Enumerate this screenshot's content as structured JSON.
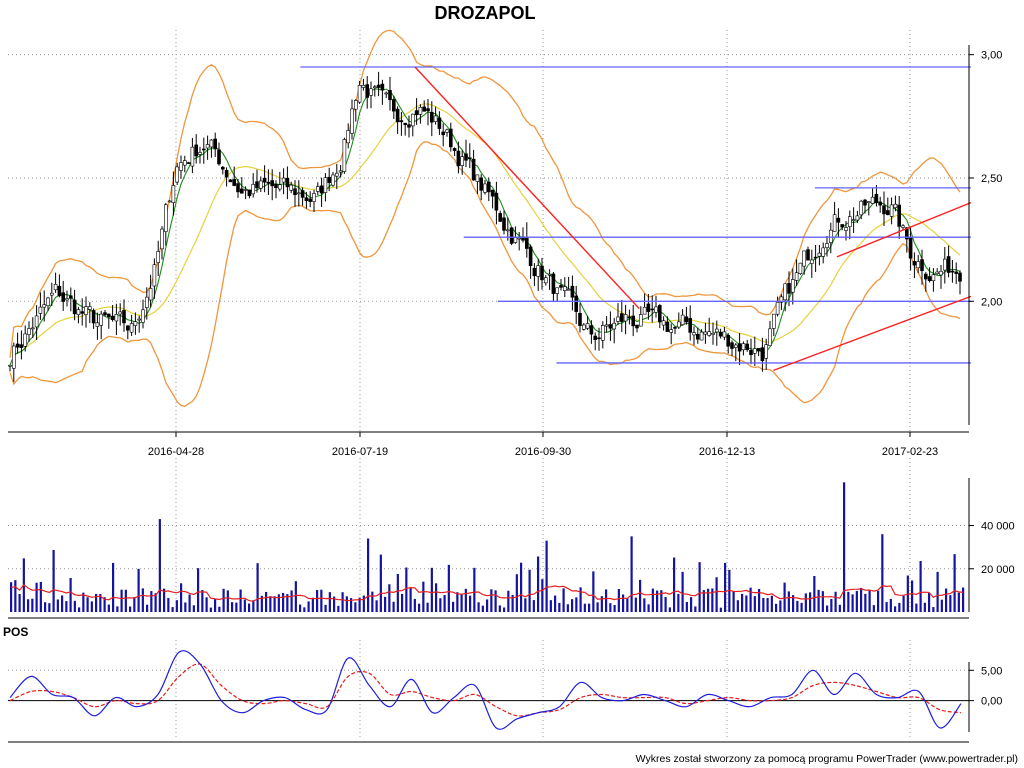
{
  "title": "DROZAPOL",
  "footer": "Wykres został stworzony za pomocą programu PowerTrader (www.powertrader.pl)",
  "colors": {
    "grid": "#9a9a9a",
    "hline": "#6464ff",
    "trend": "#ff2020",
    "bollinger": "#f0963c",
    "ma_short": "#1e8c1e",
    "ma_long": "#e6d23c",
    "volume": "#1414a0",
    "volume_avg": "#e61e1e",
    "pos_line": "#1e1edc",
    "pos_signal": "#e61e1e"
  },
  "chart_data": [
    {
      "panel": "price",
      "type": "candlestick",
      "title": "DROZAPOL",
      "x_tick_labels": [
        "2016-04-28",
        "2016-07-19",
        "2016-09-30",
        "2016-12-13",
        "2017-02-23"
      ],
      "y_tick_labels": [
        "3,00",
        "2,50",
        "2,00"
      ],
      "ylim": [
        1.47,
        3.1
      ],
      "grid": true,
      "overlays": [
        "bollinger bands",
        "moving average short",
        "moving average long"
      ],
      "approx_close_trend": [
        {
          "x": "2016-02-10",
          "y": 1.66
        },
        {
          "x": "2016-02-25",
          "y": 1.85
        },
        {
          "x": "2016-03-10",
          "y": 2.03
        },
        {
          "x": "2016-03-25",
          "y": 1.92
        },
        {
          "x": "2016-04-10",
          "y": 1.88
        },
        {
          "x": "2016-04-20",
          "y": 2.15
        },
        {
          "x": "2016-04-28",
          "y": 2.55
        },
        {
          "x": "2016-05-10",
          "y": 2.65
        },
        {
          "x": "2016-05-25",
          "y": 2.45
        },
        {
          "x": "2016-06-10",
          "y": 2.45
        },
        {
          "x": "2016-06-25",
          "y": 2.42
        },
        {
          "x": "2016-07-05",
          "y": 2.6
        },
        {
          "x": "2016-07-12",
          "y": 2.9
        },
        {
          "x": "2016-07-25",
          "y": 2.75
        },
        {
          "x": "2016-08-05",
          "y": 2.8
        },
        {
          "x": "2016-08-15",
          "y": 2.7
        },
        {
          "x": "2016-08-30",
          "y": 2.48
        },
        {
          "x": "2016-09-15",
          "y": 2.25
        },
        {
          "x": "2016-09-30",
          "y": 2.05
        },
        {
          "x": "2016-10-15",
          "y": 1.85
        },
        {
          "x": "2016-10-30",
          "y": 1.93
        },
        {
          "x": "2016-11-15",
          "y": 1.9
        },
        {
          "x": "2016-11-30",
          "y": 1.88
        },
        {
          "x": "2016-12-13",
          "y": 1.84
        },
        {
          "x": "2016-12-25",
          "y": 1.8
        },
        {
          "x": "2017-01-05",
          "y": 2.05
        },
        {
          "x": "2017-01-20",
          "y": 2.32
        },
        {
          "x": "2017-02-05",
          "y": 2.38
        },
        {
          "x": "2017-02-15",
          "y": 2.4
        },
        {
          "x": "2017-02-23",
          "y": 2.2
        },
        {
          "x": "2017-03-05",
          "y": 2.12
        },
        {
          "x": "2017-03-15",
          "y": 2.14
        }
      ],
      "horizontal_levels": [
        {
          "y": 2.95,
          "from": "2016-06-18",
          "to": "2017-03-20"
        },
        {
          "y": 2.46,
          "from": "2017-01-15",
          "to": "2017-03-20"
        },
        {
          "y": 2.26,
          "from": "2016-08-24",
          "to": "2017-03-20"
        },
        {
          "y": 2.0,
          "from": "2016-09-07",
          "to": "2017-03-20"
        },
        {
          "y": 1.75,
          "from": "2016-10-01",
          "to": "2017-03-20"
        }
      ],
      "trend_lines": [
        {
          "from": {
            "x": "2016-08-04",
            "y": 2.95
          },
          "to": {
            "x": "2016-11-04",
            "y": 1.97
          }
        },
        {
          "from": {
            "x": "2016-12-29",
            "y": 1.72
          },
          "to": {
            "x": "2017-03-20",
            "y": 2.02
          }
        },
        {
          "from": {
            "x": "2017-01-24",
            "y": 2.18
          },
          "to": {
            "x": "2017-03-20",
            "y": 2.4
          }
        }
      ]
    },
    {
      "panel": "volume",
      "type": "bar",
      "y_tick_labels": [
        "40 000",
        "20 000"
      ],
      "ylim": [
        0,
        62000
      ],
      "overlays": [
        "volume moving average"
      ],
      "notable_bars": [
        {
          "x": "2016-04-21",
          "value": 43000
        },
        {
          "x": "2016-07-15",
          "value": 34000
        },
        {
          "x": "2016-09-26",
          "value": 33000
        },
        {
          "x": "2016-11-01",
          "value": 35000
        },
        {
          "x": "2017-01-26",
          "value": 60000
        },
        {
          "x": "2017-02-11",
          "value": 36000
        }
      ]
    },
    {
      "panel": "POS",
      "type": "line",
      "label": "POS",
      "y_tick_labels": [
        "5,00",
        "0,00"
      ],
      "ylim": [
        -6.5,
        10
      ],
      "series": [
        {
          "role": "oscillator",
          "values": [
            0.5,
            4.0,
            1.0,
            0.5,
            -2.5,
            0.5,
            -1.0,
            1.0,
            8.0,
            6.0,
            0.0,
            -2.0,
            0.0,
            0.5,
            -1.5,
            -1.5,
            7.0,
            2.5,
            -1.0,
            3.5,
            -2.0,
            0.5,
            2.5,
            -4.5,
            -3.0,
            -2.0,
            -1.0,
            3.0,
            0.5,
            0.0,
            1.0,
            0.0,
            -1.0,
            1.0,
            0.0,
            -1.0,
            0.5,
            1.0,
            5.0,
            1.0,
            4.5,
            1.0,
            0.5,
            1.5,
            -4.5,
            -0.5
          ]
        },
        {
          "role": "signal",
          "values": [
            0.0,
            1.5,
            1.5,
            0.5,
            -1.0,
            0.0,
            -0.5,
            0.0,
            4.0,
            6.0,
            2.5,
            0.0,
            -0.5,
            0.0,
            -0.5,
            -1.0,
            4.0,
            4.5,
            1.0,
            1.5,
            0.5,
            0.0,
            1.0,
            -1.0,
            -2.5,
            -2.0,
            -1.5,
            0.5,
            1.0,
            0.5,
            0.5,
            0.5,
            -0.5,
            0.0,
            0.5,
            0.0,
            0.0,
            0.5,
            2.5,
            3.0,
            2.5,
            1.5,
            0.5,
            0.5,
            -1.5,
            -2.0
          ]
        }
      ]
    }
  ]
}
